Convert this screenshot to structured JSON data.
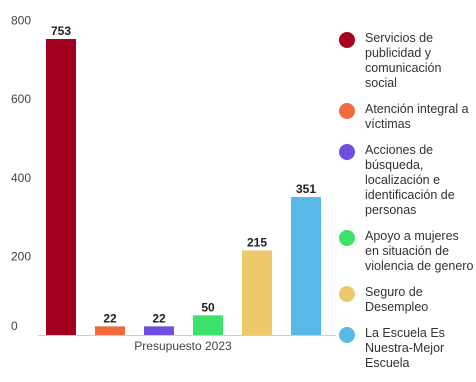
{
  "chart_data": {
    "type": "bar",
    "title": "",
    "xlabel": "",
    "ylabel": "",
    "categories": [
      "Servicios de publicidad y comunicación social",
      "Atención integral a víctimas",
      "Acciones de búsqueda, localización e identificación de personas",
      "Apoyo a mujeres en situación de violencia de genero",
      "Seguro de Desempleo",
      "La Escuela Es Nuestra-Mejor Escuela"
    ],
    "values": [
      753,
      22,
      22,
      50,
      215,
      351
    ],
    "colors": [
      "#a3001f",
      "#f26a3c",
      "#6e4fe0",
      "#3de26a",
      "#edc96b",
      "#58b8e8"
    ],
    "x_tick_label": "Presupuesto 2023",
    "ylim": [
      0,
      800
    ],
    "yticks": [
      0,
      200,
      400,
      600,
      800
    ],
    "grid": false,
    "legend_position": "right"
  }
}
